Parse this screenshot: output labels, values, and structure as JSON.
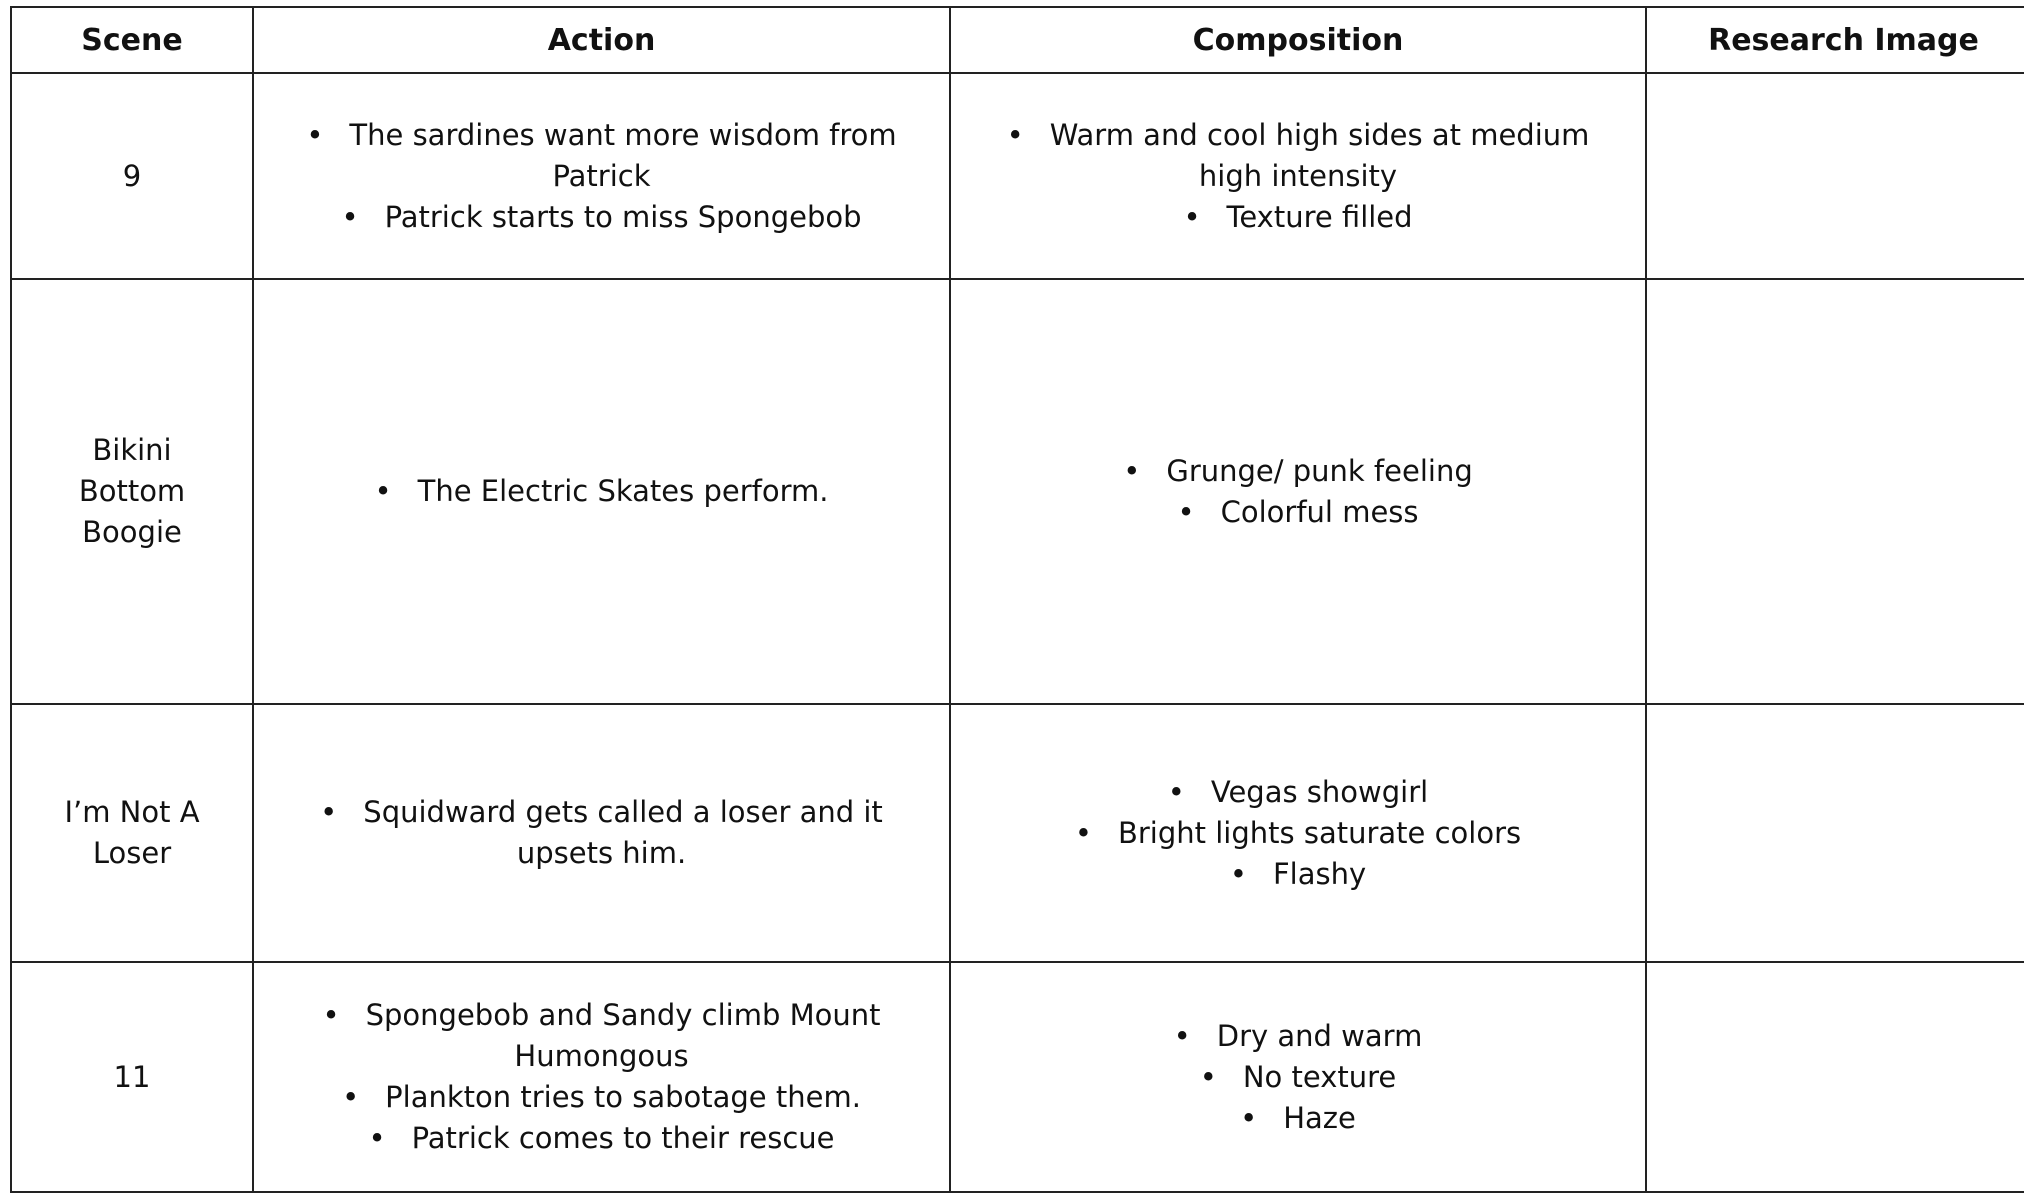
{
  "table": {
    "header": [
      "Scene",
      "Action",
      "Composition",
      "Research Image"
    ],
    "rows": [
      {
        "scene": "9",
        "action": [
          "The sardines want more wisdom from Patrick",
          "Patrick starts to miss Spongebob"
        ],
        "composition": [
          "Warm and cool high sides at medium high intensity",
          "Texture filled"
        ]
      },
      {
        "scene": "Bikini Bottom Boogie",
        "action": [
          "The Electric Skates perform."
        ],
        "composition": [
          "Grunge/ punk feeling",
          "Colorful mess"
        ]
      },
      {
        "scene": "I’m Not A Loser",
        "action": [
          "Squidward gets called a loser and it upsets him."
        ],
        "composition": [
          "Vegas showgirl",
          "Bright lights saturate colors",
          "Flashy"
        ]
      },
      {
        "scene": "11",
        "action": [
          "Spongebob and Sandy climb Mount Humongous",
          "Plankton tries to sabotage them.",
          "Patrick comes to their rescue"
        ],
        "composition": [
          "Dry and warm",
          "No texture",
          "Haze"
        ]
      }
    ]
  }
}
